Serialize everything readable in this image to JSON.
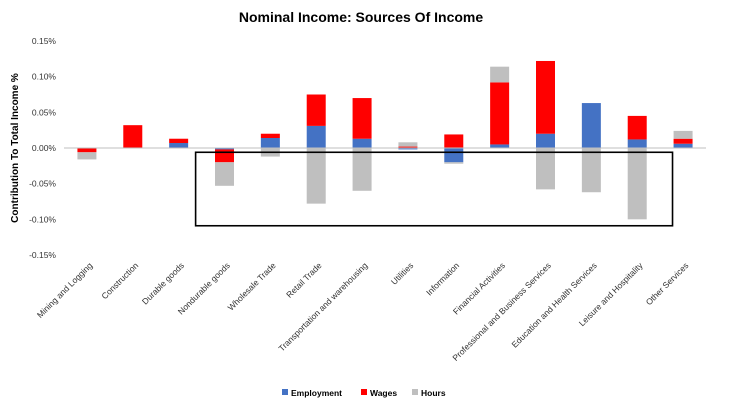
{
  "chart_data": {
    "type": "bar",
    "stacked": true,
    "title": "Nominal Income: Sources Of Income",
    "ylabel": "Contribution To Total Income %",
    "xlabel": "",
    "ylim": [
      -0.15,
      0.15
    ],
    "yticks": [
      0.15,
      0.1,
      0.05,
      0.0,
      -0.05,
      -0.1,
      -0.15
    ],
    "ytick_labels": [
      "0.15%",
      "0.10%",
      "0.05%",
      "0.00%",
      "-0.05%",
      "-0.10%",
      "-0.15%"
    ],
    "grid": false,
    "legend_position": "bottom",
    "categories": [
      "Mining and Logging",
      "Construction",
      "Durable goods",
      "Nondurable goods",
      "Wholesale Trade",
      "Retail Trade",
      "Transportation and warehousing",
      "Utilities",
      "Information",
      "Financial Activities",
      "Professional and Business Services",
      "Education and Health Services",
      "Leisure and Hospitality",
      "Other Services"
    ],
    "series": [
      {
        "name": "Employment",
        "color": "#4472C4",
        "values": [
          0.0,
          0.0,
          0.007,
          -0.002,
          0.014,
          0.031,
          0.013,
          -0.002,
          -0.02,
          0.005,
          0.02,
          0.063,
          0.012,
          0.006
        ]
      },
      {
        "name": "Wages",
        "color": "#FF0000",
        "values": [
          -0.006,
          0.032,
          0.006,
          -0.018,
          0.006,
          0.044,
          0.057,
          0.002,
          0.019,
          0.087,
          0.102,
          0.0,
          0.033,
          0.007
        ]
      },
      {
        "name": "Hours",
        "color": "#BFBFBF",
        "values": [
          -0.01,
          0.0,
          0.0,
          -0.033,
          -0.012,
          -0.078,
          -0.06,
          0.006,
          -0.002,
          0.022,
          -0.058,
          -0.062,
          -0.1,
          0.011
        ]
      }
    ],
    "annotation": {
      "type": "rectangle",
      "description": "highlight box around negative hours contributions",
      "x_from_category": "Nondurable goods",
      "x_to_category": "Leisure and Hospitality",
      "y_from": -0.006,
      "y_to": -0.109
    }
  }
}
